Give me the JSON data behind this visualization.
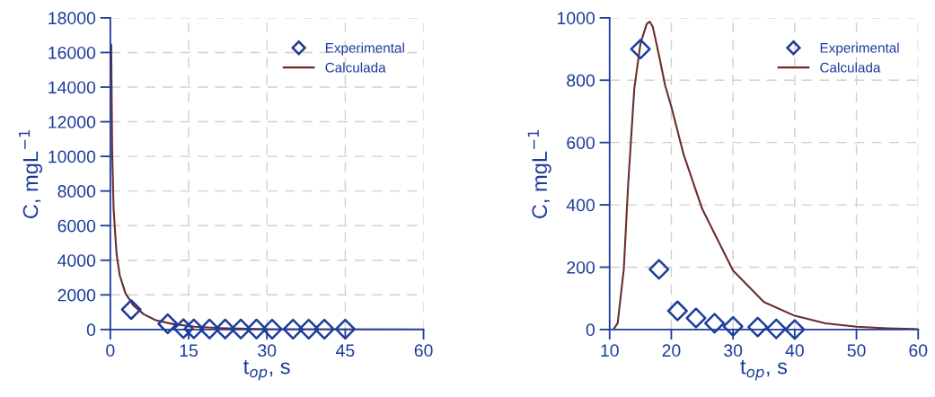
{
  "chart_data": [
    {
      "type": "scatter",
      "xlabel": "t$_{op}$, s",
      "ylabel": "C, mgL$^{−1}$",
      "xlim": [
        0,
        60
      ],
      "xticks": [
        0,
        15,
        30,
        45,
        60
      ],
      "ylim": [
        0,
        18000
      ],
      "yticks": [
        0,
        2000,
        4000,
        6000,
        8000,
        10000,
        12000,
        14000,
        16000,
        18000
      ],
      "grid": true,
      "legend": "top right",
      "series": [
        {
          "name": "Experimental",
          "marker": "diamond",
          "color": "#1c3c9c",
          "x": [
            4,
            11,
            14,
            16,
            19,
            22,
            25,
            28,
            31,
            35,
            38,
            41,
            45
          ],
          "values": [
            1150,
            330,
            50,
            40,
            30,
            30,
            30,
            30,
            20,
            20,
            20,
            20,
            20
          ]
        },
        {
          "name": "Calculada",
          "type": "line",
          "color": "#6b2c2c",
          "x": [
            0.17,
            0.35,
            0.63,
            1.2,
            1.8,
            2.9,
            4.4,
            6.4,
            8.7,
            12.1,
            16.2,
            22,
            30.6,
            60
          ],
          "values": [
            16450,
            10400,
            6940,
            4340,
            3130,
            2090,
            1400,
            880,
            540,
            310,
            160,
            70,
            20,
            0
          ]
        }
      ]
    },
    {
      "type": "scatter",
      "xlabel": "t$_{op}$, s",
      "ylabel": "C, mgL$^{−1}$",
      "xlim": [
        10,
        60
      ],
      "xticks": [
        10,
        20,
        30,
        40,
        50,
        60
      ],
      "ylim": [
        0,
        1000
      ],
      "yticks": [
        0,
        200,
        400,
        600,
        800,
        1000
      ],
      "grid": true,
      "legend": "top right",
      "series": [
        {
          "name": "Experimental",
          "marker": "diamond",
          "color": "#1c3c9c",
          "x": [
            15,
            18,
            21,
            24,
            27,
            30,
            34,
            37,
            40
          ],
          "values": [
            900,
            193,
            60,
            37,
            20,
            10,
            8,
            2,
            0
          ]
        },
        {
          "name": "Calculada",
          "type": "line",
          "color": "#6b2c2c",
          "x": [
            10.6,
            11.3,
            12.3,
            13,
            14,
            15,
            16,
            16.5,
            17,
            18,
            19,
            20,
            22,
            25,
            30,
            35,
            40,
            45,
            50,
            55,
            60
          ],
          "values": [
            0,
            20,
            194,
            465,
            773,
            918,
            980,
            988,
            971,
            880,
            783,
            715,
            561,
            387,
            189,
            88,
            44,
            20,
            9,
            4,
            1
          ]
        }
      ]
    }
  ]
}
